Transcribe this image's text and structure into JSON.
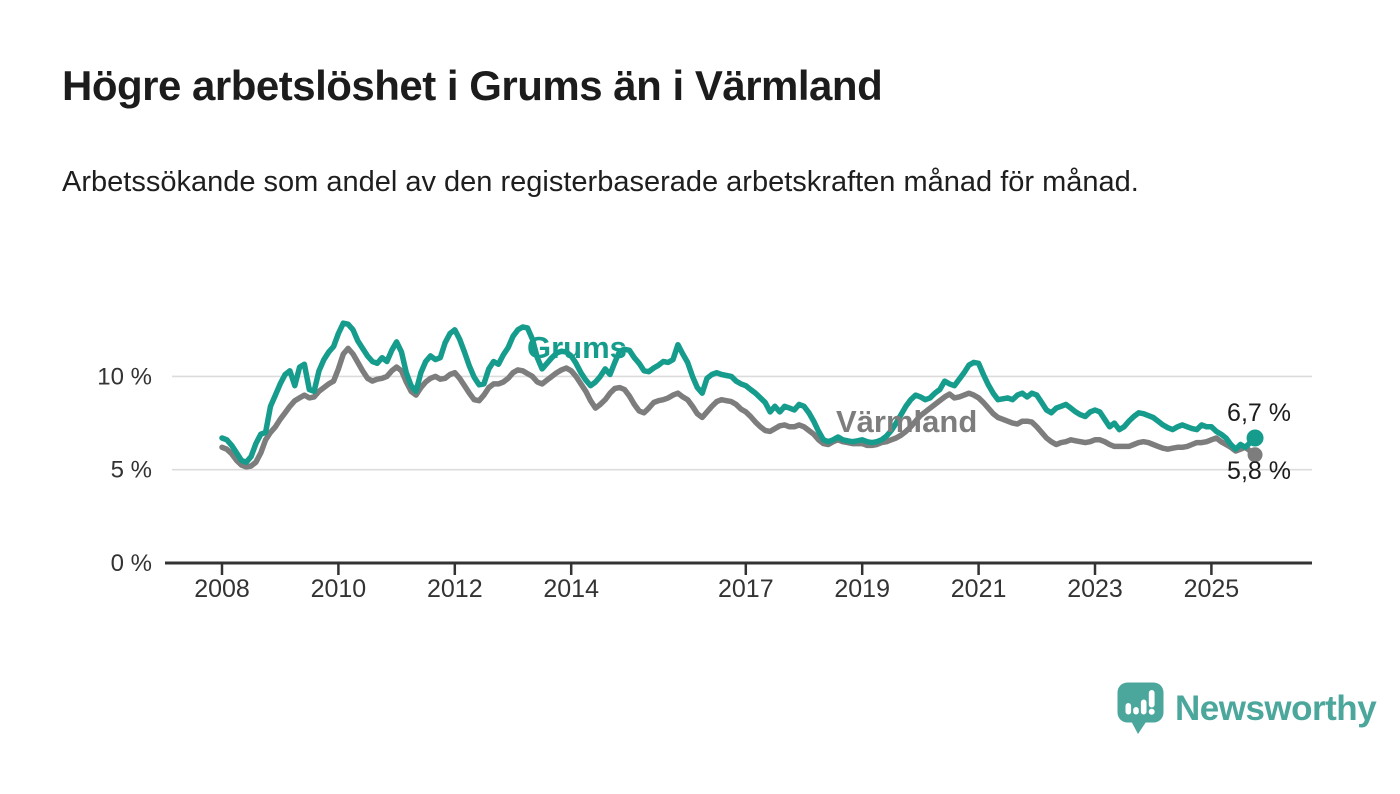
{
  "header": {
    "title": "Högre arbetslöshet i Grums än i Värmland",
    "subtitle": "Arbetssökande som andel av den registerbaserade arbetskraften månad för månad."
  },
  "colors": {
    "grums_teal": "#169c8c",
    "varmland_gray": "#7d7d7d",
    "axis": "#333333",
    "gridline": "#dcdcdc",
    "text_dark": "#1c1c1c",
    "logo_teal": "#4ba69c"
  },
  "chart_data": {
    "type": "line",
    "title": "",
    "xlabel": "",
    "ylabel": "",
    "x_start": "2008-01",
    "x_end": "2025-10",
    "x_interval": "monthly",
    "x_ticks": [
      2008,
      2010,
      2012,
      2014,
      2017,
      2019,
      2021,
      2023,
      2025
    ],
    "y_ticks": [
      {
        "label": "0 %",
        "value": 0
      },
      {
        "label": "5 %",
        "value": 5
      },
      {
        "label": "10 %",
        "value": 10
      }
    ],
    "ylim": [
      0,
      13.5
    ],
    "grid": "horizontal",
    "legend_position": "inline-labels",
    "series": [
      {
        "name": "Grums",
        "color": "#169c8c",
        "end_label": "6,7 %",
        "end_value": 6.7,
        "values": [
          6.7,
          6.6,
          6.3,
          5.9,
          5.5,
          5.4,
          5.7,
          6.4,
          6.9,
          7.0,
          8.4,
          9.0,
          9.6,
          10.1,
          10.3,
          9.5,
          10.5,
          10.65,
          9.3,
          9.2,
          10.3,
          10.9,
          11.3,
          11.6,
          12.3,
          12.85,
          12.8,
          12.5,
          11.9,
          11.5,
          11.1,
          10.8,
          10.7,
          11.0,
          10.8,
          11.4,
          11.85,
          11.3,
          10.2,
          9.5,
          9.2,
          10.2,
          10.8,
          11.1,
          10.9,
          11.0,
          11.8,
          12.3,
          12.5,
          12.0,
          11.3,
          10.55,
          9.95,
          9.55,
          9.6,
          10.4,
          10.8,
          10.65,
          11.15,
          11.55,
          12.15,
          12.5,
          12.65,
          12.6,
          12.0,
          11.0,
          10.4,
          10.7,
          11.0,
          11.25,
          11.35,
          11.3,
          11.1,
          10.7,
          10.2,
          9.8,
          9.5,
          9.7,
          10.0,
          10.4,
          10.1,
          10.75,
          11.35,
          11.45,
          11.4,
          11.0,
          10.7,
          10.3,
          10.25,
          10.45,
          10.6,
          10.8,
          10.75,
          10.9,
          11.7,
          11.2,
          10.75,
          10.0,
          9.4,
          9.1,
          9.9,
          10.1,
          10.2,
          10.1,
          10.05,
          10.0,
          9.75,
          9.6,
          9.5,
          9.3,
          9.1,
          8.85,
          8.6,
          8.1,
          8.4,
          8.1,
          8.4,
          8.3,
          8.2,
          8.5,
          8.4,
          8.05,
          7.6,
          7.05,
          6.6,
          6.5,
          6.6,
          6.75,
          6.6,
          6.55,
          6.5,
          6.55,
          6.6,
          6.5,
          6.45,
          6.5,
          6.6,
          6.8,
          7.1,
          7.5,
          7.95,
          8.4,
          8.75,
          9.0,
          8.9,
          8.75,
          8.85,
          9.1,
          9.3,
          9.75,
          9.6,
          9.5,
          9.85,
          10.2,
          10.6,
          10.75,
          10.7,
          10.1,
          9.55,
          9.1,
          8.75,
          8.8,
          8.85,
          8.75,
          9.0,
          9.1,
          8.9,
          9.1,
          9.0,
          8.6,
          8.2,
          8.05,
          8.3,
          8.4,
          8.5,
          8.3,
          8.1,
          7.95,
          7.85,
          8.1,
          8.2,
          8.1,
          7.7,
          7.3,
          7.5,
          7.15,
          7.3,
          7.6,
          7.85,
          8.05,
          8.0,
          7.9,
          7.8,
          7.6,
          7.4,
          7.25,
          7.15,
          7.3,
          7.4,
          7.3,
          7.2,
          7.15,
          7.4,
          7.3,
          7.3,
          7.05,
          6.9,
          6.7,
          6.35,
          6.1,
          6.35,
          6.2,
          6.45,
          6.7
        ]
      },
      {
        "name": "Värmland",
        "color": "#7d7d7d",
        "end_label": "5,8 %",
        "end_value": 5.8,
        "values": [
          6.2,
          6.1,
          5.85,
          5.5,
          5.25,
          5.15,
          5.2,
          5.4,
          5.9,
          6.6,
          7.0,
          7.3,
          7.7,
          8.05,
          8.4,
          8.7,
          8.85,
          9.0,
          8.85,
          8.9,
          9.2,
          9.4,
          9.6,
          9.75,
          10.4,
          11.2,
          11.5,
          11.2,
          10.75,
          10.3,
          9.9,
          9.75,
          9.85,
          9.9,
          10.0,
          10.3,
          10.5,
          10.3,
          9.7,
          9.2,
          9.0,
          9.4,
          9.7,
          9.9,
          10.0,
          9.85,
          9.9,
          10.1,
          10.2,
          9.9,
          9.5,
          9.1,
          8.75,
          8.7,
          9.0,
          9.4,
          9.6,
          9.6,
          9.7,
          9.9,
          10.2,
          10.35,
          10.3,
          10.15,
          10.0,
          9.7,
          9.6,
          9.8,
          10.0,
          10.2,
          10.35,
          10.45,
          10.3,
          10.0,
          9.6,
          9.2,
          8.7,
          8.3,
          8.5,
          8.75,
          9.1,
          9.35,
          9.4,
          9.3,
          8.95,
          8.5,
          8.15,
          8.05,
          8.3,
          8.6,
          8.7,
          8.75,
          8.85,
          9.0,
          9.1,
          8.9,
          8.75,
          8.4,
          8.0,
          7.8,
          8.1,
          8.4,
          8.65,
          8.75,
          8.7,
          8.65,
          8.5,
          8.25,
          8.1,
          7.85,
          7.55,
          7.3,
          7.1,
          7.05,
          7.2,
          7.35,
          7.4,
          7.3,
          7.3,
          7.4,
          7.3,
          7.1,
          6.9,
          6.6,
          6.4,
          6.35,
          6.5,
          6.6,
          6.5,
          6.45,
          6.4,
          6.4,
          6.4,
          6.3,
          6.3,
          6.35,
          6.45,
          6.5,
          6.6,
          6.7,
          6.85,
          7.05,
          7.3,
          7.6,
          7.9,
          8.1,
          8.3,
          8.5,
          8.7,
          8.9,
          9.05,
          8.85,
          8.9,
          9.0,
          9.1,
          9.0,
          8.85,
          8.6,
          8.3,
          8.0,
          7.8,
          7.7,
          7.6,
          7.5,
          7.45,
          7.6,
          7.6,
          7.55,
          7.3,
          7.0,
          6.7,
          6.5,
          6.35,
          6.45,
          6.5,
          6.6,
          6.55,
          6.5,
          6.45,
          6.5,
          6.6,
          6.6,
          6.5,
          6.35,
          6.25,
          6.25,
          6.25,
          6.25,
          6.35,
          6.45,
          6.5,
          6.45,
          6.35,
          6.25,
          6.15,
          6.1,
          6.15,
          6.2,
          6.2,
          6.25,
          6.35,
          6.45,
          6.45,
          6.5,
          6.6,
          6.7,
          6.5,
          6.35,
          6.2,
          6.0,
          6.1,
          6.2,
          6.0,
          5.8
        ]
      }
    ]
  },
  "logo": {
    "text": "Newsworthy",
    "icon": "newsworthy-speech-bubble-bar-chart-icon",
    "color": "#4ba69c"
  }
}
